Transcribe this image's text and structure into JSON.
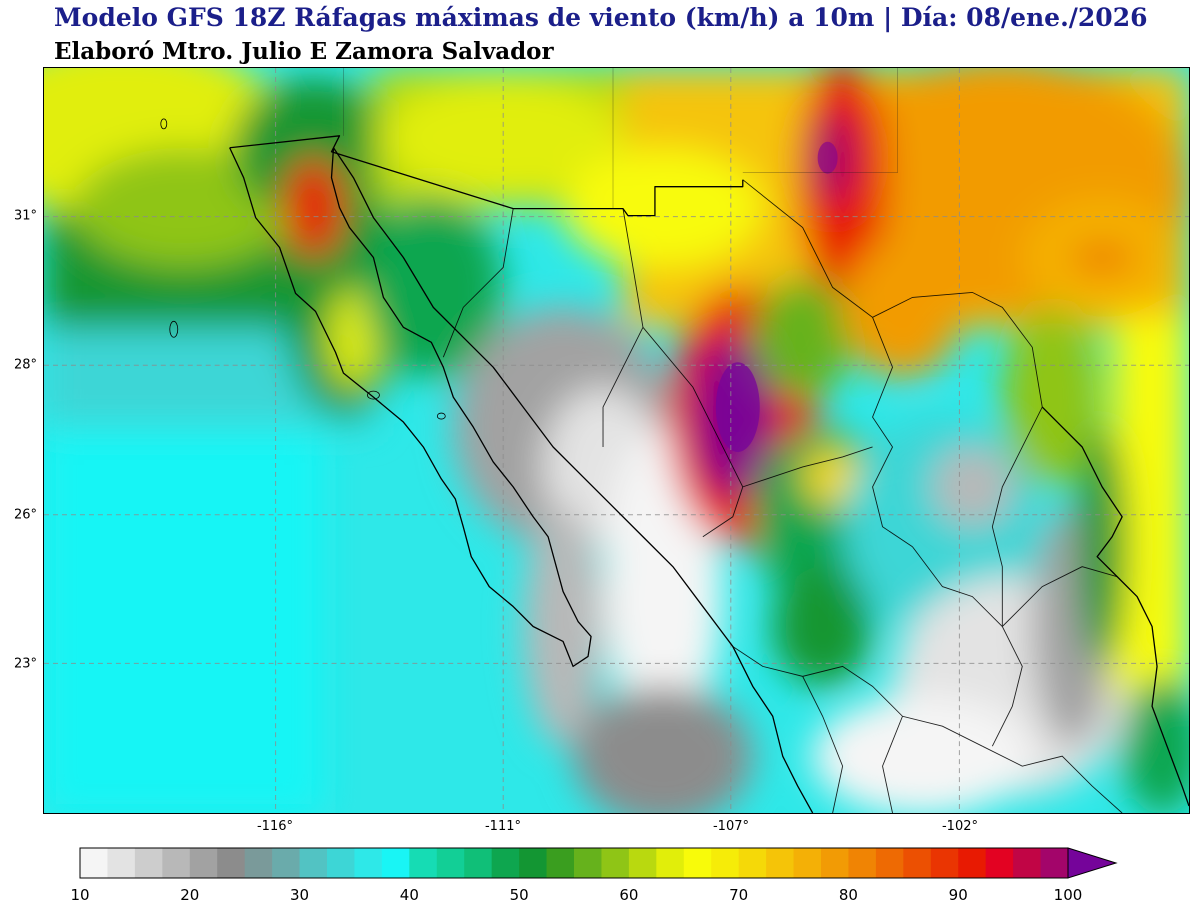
{
  "header": {
    "title": "Modelo GFS 18Z Ráfagas máximas de viento (km/h) a 10m | Día: 08/ene./2026",
    "subtitle": "Elaboró Mtro. Julio E Zamora Salvador"
  },
  "map": {
    "lat_labels": [
      "31°",
      "28°",
      "26°",
      "23°"
    ],
    "lon_labels": [
      "-116°",
      "-111°",
      "-107°",
      "-102°"
    ],
    "gridlines": "dashed",
    "field": "wind gusts km/h at 10m"
  },
  "colorbar": {
    "min": 10,
    "max": 100,
    "step": 2.5,
    "tick_labels": [
      "10",
      "20",
      "30",
      "40",
      "50",
      "60",
      "70",
      "80",
      "90",
      "100"
    ],
    "extend": "max",
    "colors": [
      "#f5f5f5",
      "#e3e3e3",
      "#cdcdcd",
      "#b8b8b8",
      "#a2a2a2",
      "#8c8c8c",
      "#7a9a9a",
      "#6aabab",
      "#52c3c3",
      "#3dd6d6",
      "#2ee8e8",
      "#19f5f5",
      "#16dcb4",
      "#12cf96",
      "#10bf78",
      "#0ea64f",
      "#139633",
      "#3a9e1f",
      "#66b21c",
      "#8fc516",
      "#b9d90f",
      "#e1ee0a",
      "#f8fb0a",
      "#f6ec08",
      "#f5d908",
      "#f5c408",
      "#f4b006",
      "#f29b05",
      "#f08404",
      "#ee6a03",
      "#ec5002",
      "#ea3502",
      "#e81a02",
      "#e30222",
      "#c10545",
      "#a3056a",
      "#8a0688",
      "#75049a"
    ]
  }
}
